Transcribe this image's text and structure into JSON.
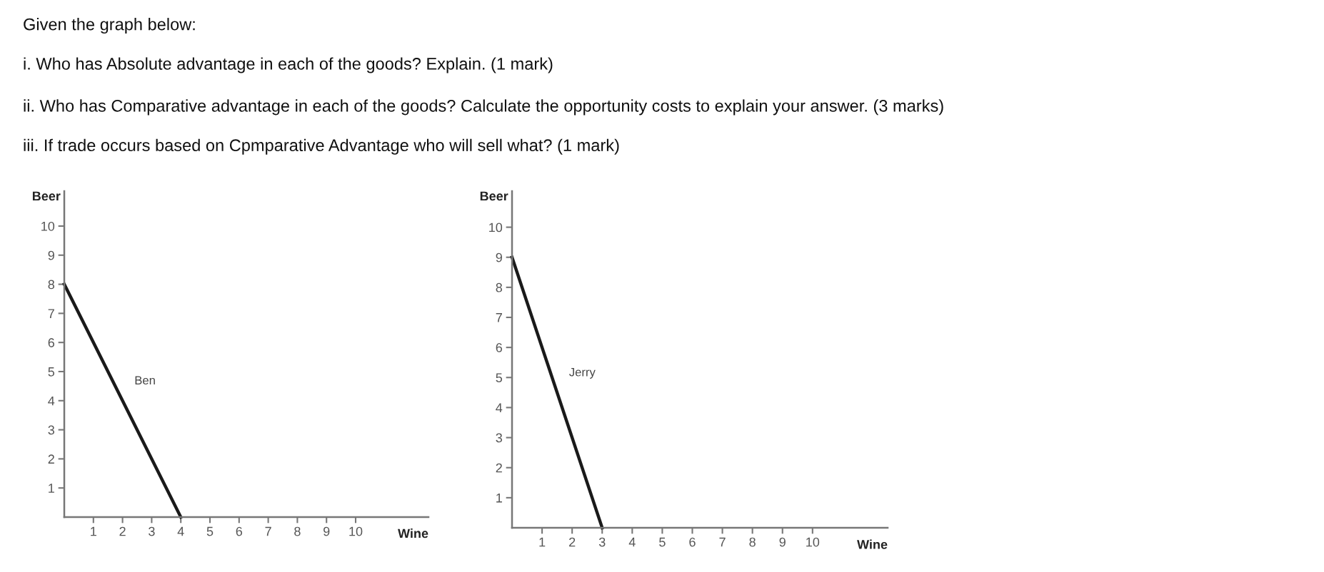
{
  "chart_data": [
    {
      "type": "other",
      "annotations": [
        "Given the graph below:",
        "i. Who has Absolute advantage in each of the goods? Explain. (1 mark)",
        "ii. Who has Comparative advantage in each of the goods? Calculate the opportunity costs to explain your answer. (3 marks)",
        "iii. If trade occurs based on Cpmparative Advantage who will sell what? (1 mark)"
      ]
    },
    {
      "type": "line",
      "xlabel": "Wine",
      "ylabel": "Beer",
      "x": [
        0,
        4
      ],
      "series": [
        {
          "name": "Ben",
          "color": "#1a1a1a",
          "values": [
            8,
            0
          ]
        }
      ],
      "xlim": [
        0,
        12.5
      ],
      "ylim": [
        0,
        11.2
      ],
      "xticks": [
        1,
        2,
        3,
        4,
        5,
        6,
        7,
        8,
        9,
        10
      ],
      "yticks": [
        1,
        2,
        3,
        4,
        5,
        6,
        7,
        8,
        9,
        10
      ],
      "grid": false,
      "legend": false,
      "marker": "none",
      "line_style": "solid"
    },
    {
      "type": "line",
      "xlabel": "Wine",
      "ylabel": "Beer",
      "x": [
        0,
        3
      ],
      "series": [
        {
          "name": "Jerry",
          "color": "#1a1a1a",
          "values": [
            9,
            0
          ]
        }
      ],
      "xlim": [
        0,
        12.5
      ],
      "ylim": [
        0,
        11.2
      ],
      "xticks": [
        1,
        2,
        3,
        4,
        5,
        6,
        7,
        8,
        9,
        10
      ],
      "yticks": [
        1,
        2,
        3,
        4,
        5,
        6,
        7,
        8,
        9,
        10
      ],
      "grid": false,
      "legend": false,
      "marker": "none",
      "line_style": "solid"
    }
  ]
}
